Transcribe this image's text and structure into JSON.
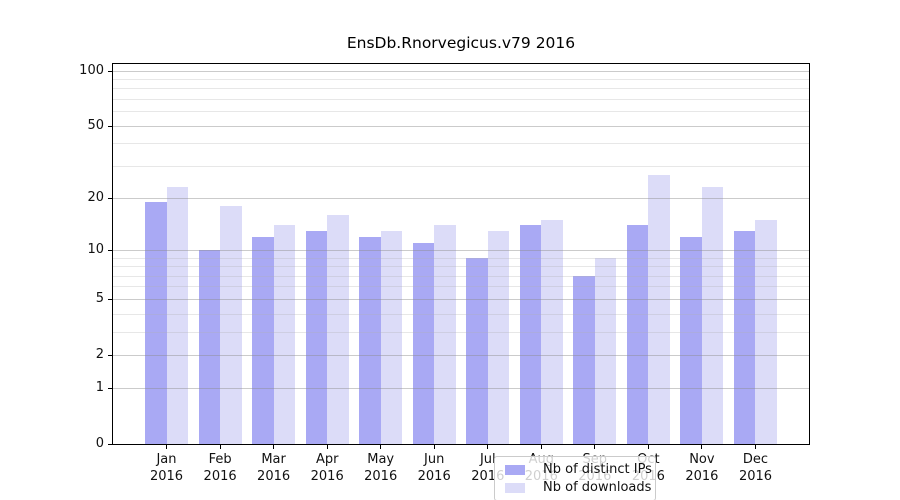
{
  "title": "EnsDb.Rnorvegicus.v79 2016",
  "chart_data": {
    "type": "bar",
    "title": "EnsDb.Rnorvegicus.v79 2016",
    "categories": [
      "Jan 2016",
      "Feb 2016",
      "Mar 2016",
      "Apr 2016",
      "May 2016",
      "Jun 2016",
      "Jul 2016",
      "Aug 2016",
      "Sep 2016",
      "Oct 2016",
      "Nov 2016",
      "Dec 2016"
    ],
    "series": [
      {
        "name": "Nb of distinct IPs",
        "color": "#a9a9f4",
        "values": [
          19,
          10,
          12,
          13,
          12,
          11,
          9,
          14,
          7,
          14,
          12,
          13
        ]
      },
      {
        "name": "Nb of downloads",
        "color": "#dcdcf8",
        "values": [
          23,
          18,
          14,
          16,
          13,
          14,
          13,
          15,
          9,
          27,
          23,
          15
        ]
      }
    ],
    "xlabel": "",
    "ylabel": "",
    "yscale": "log1p",
    "ylim": [
      0,
      110
    ],
    "y_major_ticks": [
      0,
      1,
      2,
      5,
      10,
      20,
      50,
      100
    ],
    "y_minor_gridlines": [
      3,
      4,
      6,
      7,
      8,
      9,
      30,
      40,
      60,
      70,
      80,
      90
    ],
    "grid": true,
    "legend_position": "lower center"
  },
  "legend": {
    "items": [
      {
        "label": "Nb of distinct IPs",
        "color": "#a9a9f4"
      },
      {
        "label": "Nb of downloads",
        "color": "#dcdcf8"
      }
    ]
  },
  "colors": {
    "ips_bar": "#a9a9f4",
    "downloads_bar": "#dcdcf8",
    "axis": "#000000",
    "background": "#ffffff"
  }
}
